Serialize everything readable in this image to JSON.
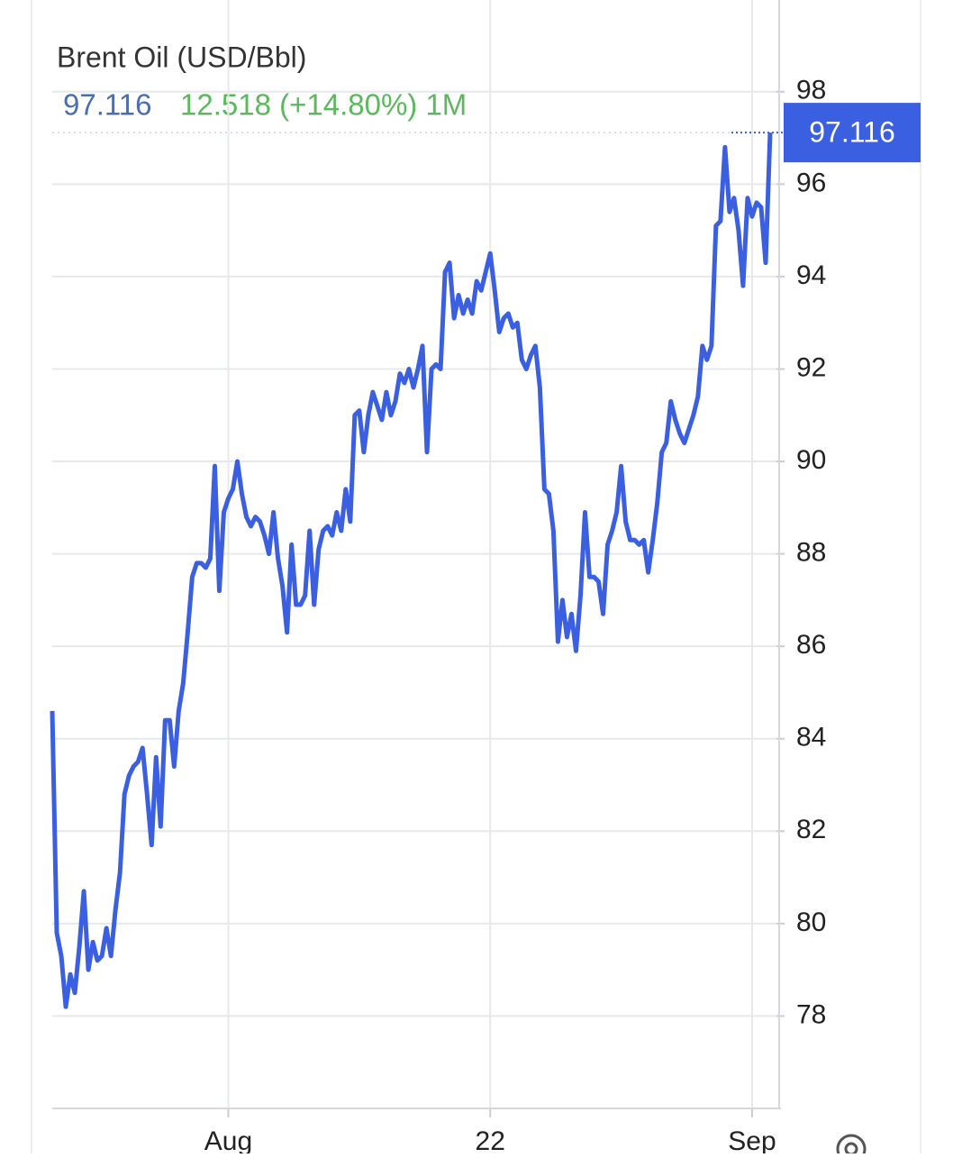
{
  "chart_data": {
    "type": "line",
    "title": "Brent Oil (USD/Bbl)",
    "change_text": "12.518 (+14.80%) 1M",
    "categories": [
      null,
      null,
      null,
      null,
      null,
      null,
      null,
      null,
      null,
      null,
      null,
      null,
      null,
      null,
      null,
      null,
      null,
      null,
      null,
      null,
      null,
      null,
      null,
      null,
      null,
      null,
      null,
      null,
      null,
      null,
      null,
      null,
      null,
      null,
      null,
      null,
      null,
      null,
      null,
      "Aug",
      null,
      null,
      null,
      null,
      null,
      null,
      null,
      null,
      null,
      null,
      null,
      null,
      null,
      null,
      null,
      null,
      null,
      null,
      null,
      null,
      null,
      null,
      null,
      null,
      null,
      null,
      null,
      null,
      null,
      null,
      null,
      null,
      null,
      null,
      null,
      null,
      null,
      null,
      null,
      null,
      null,
      null,
      null,
      null,
      null,
      null,
      null,
      null,
      null,
      null,
      null,
      null,
      null,
      null,
      null,
      null,
      null,
      "22",
      null,
      null,
      null,
      null,
      null,
      null,
      null,
      null,
      null,
      null,
      null,
      null,
      null,
      null,
      null,
      null,
      null,
      null,
      null,
      null,
      null,
      null,
      null,
      null,
      null,
      null,
      null,
      null,
      null,
      null,
      null,
      null,
      null,
      null,
      null,
      null,
      null,
      null,
      null,
      null,
      null,
      null,
      null,
      null,
      null,
      null,
      null,
      null,
      null,
      null,
      null,
      null,
      null,
      null,
      null,
      null,
      null,
      "Sep",
      null,
      null,
      null,
      null
    ],
    "series": [
      {
        "color": "#3a5fe0",
        "values": [
          84.6,
          79.8,
          79.3,
          78.2,
          78.9,
          78.5,
          79.5,
          80.7,
          79.0,
          79.6,
          79.2,
          79.3,
          79.9,
          79.3,
          80.3,
          81.1,
          82.8,
          83.2,
          83.4,
          83.5,
          83.8,
          82.8,
          81.7,
          83.6,
          82.1,
          84.4,
          84.4,
          83.4,
          84.6,
          85.2,
          86.3,
          87.5,
          87.8,
          87.8,
          87.7,
          87.9,
          89.9,
          87.2,
          88.9,
          89.2,
          89.4,
          90.0,
          89.3,
          88.8,
          88.6,
          88.8,
          88.7,
          88.4,
          88.0,
          88.9,
          87.9,
          87.3,
          86.3,
          88.2,
          86.9,
          86.9,
          87.1,
          88.5,
          86.9,
          88.1,
          88.5,
          88.6,
          88.4,
          88.9,
          88.5,
          89.4,
          88.7,
          91.0,
          91.1,
          90.2,
          91.0,
          91.5,
          91.2,
          90.9,
          91.5,
          91.0,
          91.3,
          91.9,
          91.7,
          92.0,
          91.6,
          92.0,
          92.5,
          90.2,
          92.0,
          92.1,
          92.0,
          94.1,
          94.3,
          93.1,
          93.6,
          93.2,
          93.5,
          93.2,
          93.9,
          93.7,
          94.1,
          94.5,
          93.7,
          92.8,
          93.1,
          93.2,
          92.9,
          93.0,
          92.2,
          92.0,
          92.3,
          92.5,
          91.6,
          89.4,
          89.3,
          88.5,
          86.1,
          87.0,
          86.2,
          86.7,
          85.9,
          87.1,
          88.9,
          87.5,
          87.5,
          87.4,
          86.7,
          88.2,
          88.5,
          88.9,
          89.9,
          88.7,
          88.3,
          88.3,
          88.2,
          88.3,
          87.6,
          88.3,
          89.1,
          90.2,
          90.4,
          91.3,
          90.9,
          90.6,
          90.4,
          90.7,
          91.0,
          91.4,
          92.5,
          92.2,
          92.5,
          95.1,
          95.2,
          96.8,
          95.4,
          95.7,
          95.0,
          93.8,
          95.7,
          95.3,
          95.6,
          95.5,
          94.3,
          97.116
        ]
      }
    ],
    "ylim": [
      76,
      99.4
    ],
    "yticks": [
      78,
      80,
      82,
      84,
      86,
      88,
      90,
      92,
      94,
      96,
      98
    ],
    "grid": true
  }
}
